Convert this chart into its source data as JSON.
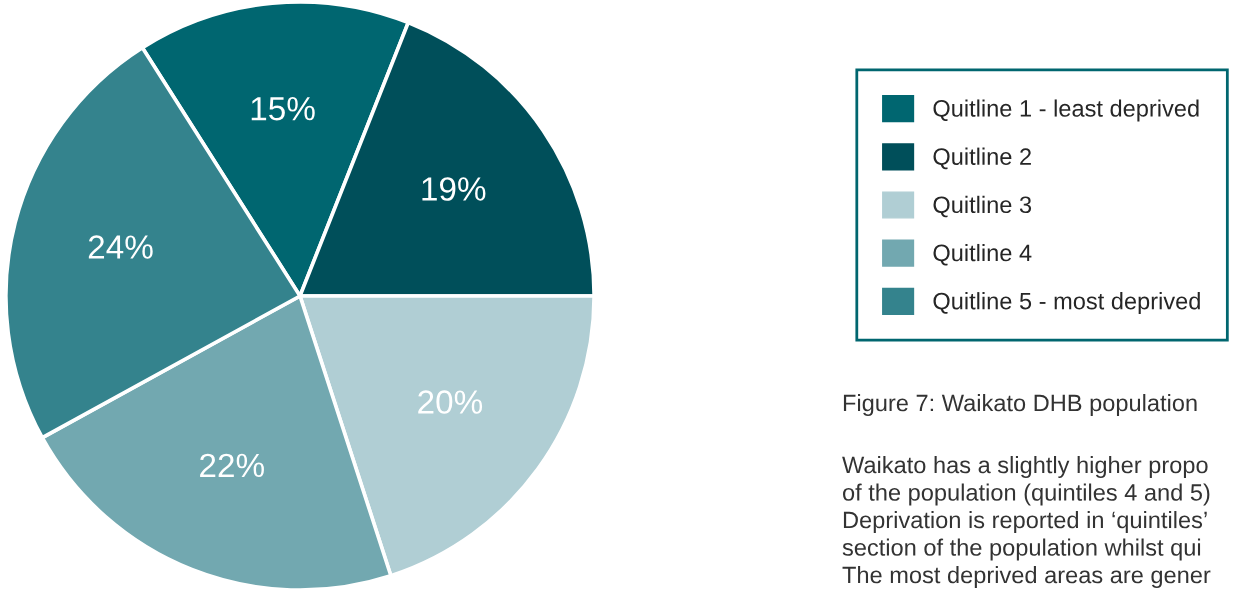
{
  "chart_data": {
    "type": "pie",
    "categories": [
      "Quitline 1 - least deprived",
      "Quitline 2",
      "Quitline 3",
      "Quitline 4",
      "Quitline 5 - most deprived"
    ],
    "values": [
      15,
      19,
      20,
      22,
      24
    ],
    "colors": [
      "#006670",
      "#004f5a",
      "#b0ced4",
      "#72a8b0",
      "#34838d"
    ],
    "value_labels": [
      "15%",
      "19%",
      "20%",
      "22%",
      "24%"
    ],
    "legend": "right",
    "annotations": [
      "Figure 7: Waikato DHB population",
      "Waikato has a slightly higher propo",
      "of the population (quintiles 4 and 5)",
      "Deprivation is reported in ‘quintiles’",
      "section of the population whilst qui",
      "The most deprived areas are gener"
    ]
  }
}
